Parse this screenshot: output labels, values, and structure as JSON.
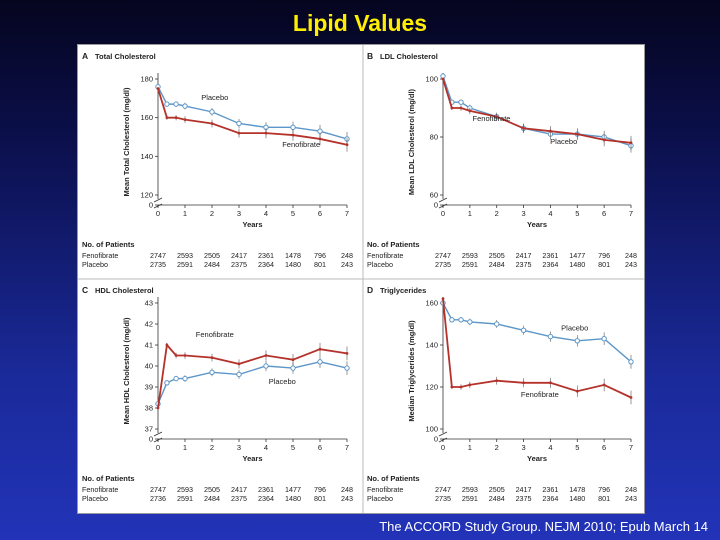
{
  "slide": {
    "title": "Lipid Values",
    "citation": "The ACCORD Study Group. NEJM 2010; Epub March 14"
  },
  "colors": {
    "fenofibrate": "#b5322b",
    "placebo": "#5d96c8"
  },
  "chart_data": [
    {
      "type": "line",
      "letter": "A",
      "title": "Total Cholesterol",
      "xlabel": "Years",
      "ylabel": "Mean Total Cholesterol (mg/dl)",
      "ylim": [
        120,
        180
      ],
      "yticks": [
        120,
        140,
        160,
        180
      ],
      "xlim": [
        0,
        7
      ],
      "xticks": [
        0,
        1,
        2,
        3,
        4,
        5,
        6,
        7
      ],
      "axis_break": true,
      "series": [
        {
          "name": "Fenofibrate",
          "x": [
            0,
            0.33,
            0.67,
            1,
            2,
            3,
            4,
            5,
            6,
            7
          ],
          "y": [
            175,
            160,
            160,
            159,
            157,
            152,
            152,
            151,
            149,
            146
          ]
        },
        {
          "name": "Placebo",
          "x": [
            0,
            0.33,
            0.67,
            1,
            2,
            3,
            4,
            5,
            6,
            7
          ],
          "y": [
            176,
            167,
            167,
            166,
            163,
            157,
            155,
            155,
            153,
            149
          ]
        }
      ],
      "patients_header": "No. of Patients",
      "patients": [
        {
          "label": "Fenofibrate",
          "values": [
            "2747",
            "2593",
            "2505",
            "2417",
            "2361",
            "1478",
            "796",
            "248"
          ]
        },
        {
          "label": "Placebo",
          "values": [
            "2735",
            "2591",
            "2484",
            "2375",
            "2364",
            "1480",
            "801",
            "243"
          ]
        }
      ]
    },
    {
      "type": "line",
      "letter": "B",
      "title": "LDL Cholesterol",
      "xlabel": "Years",
      "ylabel": "Mean LDL Cholesterol (mg/dl)",
      "ylim": [
        60,
        100
      ],
      "yticks": [
        60,
        80,
        100
      ],
      "xlim": [
        0,
        7
      ],
      "xticks": [
        0,
        1,
        2,
        3,
        4,
        5,
        6,
        7
      ],
      "axis_break": true,
      "series": [
        {
          "name": "Fenofibrate",
          "x": [
            0,
            0.33,
            0.67,
            1,
            2,
            3,
            4,
            5,
            6,
            7
          ],
          "y": [
            100,
            90,
            90,
            89,
            87,
            83,
            82,
            81,
            79,
            78
          ]
        },
        {
          "name": "Placebo",
          "x": [
            0,
            0.33,
            0.67,
            1,
            2,
            3,
            4,
            5,
            6,
            7
          ],
          "y": [
            101,
            92,
            92,
            90,
            87,
            83,
            81,
            81,
            80,
            77
          ]
        }
      ],
      "patients_header": "No. of Patients",
      "patients": [
        {
          "label": "Fenofibrate",
          "values": [
            "2747",
            "2593",
            "2505",
            "2417",
            "2361",
            "1477",
            "796",
            "248"
          ]
        },
        {
          "label": "Placebo",
          "values": [
            "2735",
            "2591",
            "2484",
            "2375",
            "2364",
            "1480",
            "801",
            "243"
          ]
        }
      ]
    },
    {
      "type": "line",
      "letter": "C",
      "title": "HDL Cholesterol",
      "xlabel": "Years",
      "ylabel": "Mean HDL Cholesterol (mg/dl)",
      "ylim": [
        37,
        43
      ],
      "yticks": [
        37,
        38,
        39,
        40,
        41,
        42,
        43
      ],
      "xlim": [
        0,
        7
      ],
      "xticks": [
        0,
        1,
        2,
        3,
        4,
        5,
        6,
        7
      ],
      "axis_break": true,
      "series": [
        {
          "name": "Fenofibrate",
          "x": [
            0,
            0.33,
            0.67,
            1,
            2,
            3,
            4,
            5,
            6,
            7
          ],
          "y": [
            38.0,
            41.0,
            40.5,
            40.5,
            40.4,
            40.1,
            40.5,
            40.3,
            40.8,
            40.6
          ]
        },
        {
          "name": "Placebo",
          "x": [
            0,
            0.33,
            0.67,
            1,
            2,
            3,
            4,
            5,
            6,
            7
          ],
          "y": [
            38.2,
            39.2,
            39.4,
            39.4,
            39.7,
            39.6,
            40.0,
            39.9,
            40.2,
            39.9
          ]
        }
      ],
      "patients_header": "No. of Patients",
      "patients": [
        {
          "label": "Fenofibrate",
          "values": [
            "2747",
            "2593",
            "2505",
            "2417",
            "2361",
            "1477",
            "796",
            "248"
          ]
        },
        {
          "label": "Placebo",
          "values": [
            "2736",
            "2591",
            "2484",
            "2375",
            "2364",
            "1480",
            "801",
            "243"
          ]
        }
      ]
    },
    {
      "type": "line",
      "letter": "D",
      "title": "Triglycerides",
      "xlabel": "Years",
      "ylabel": "Median Triglycerides (mg/dl)",
      "ylim": [
        100,
        160
      ],
      "yticks": [
        100,
        120,
        140,
        160
      ],
      "xlim": [
        0,
        7
      ],
      "xticks": [
        0,
        1,
        2,
        3,
        4,
        5,
        6,
        7
      ],
      "axis_break": true,
      "series": [
        {
          "name": "Fenofibrate",
          "x": [
            0,
            0.33,
            0.67,
            1,
            2,
            3,
            4,
            5,
            6,
            7
          ],
          "y": [
            162,
            120,
            120,
            121,
            123,
            122,
            122,
            118,
            121,
            115
          ]
        },
        {
          "name": "Placebo",
          "x": [
            0,
            0.33,
            0.67,
            1,
            2,
            3,
            4,
            5,
            6,
            7
          ],
          "y": [
            160,
            152,
            152,
            151,
            150,
            147,
            144,
            142,
            143,
            132
          ]
        }
      ],
      "patients_header": "No. of Patients",
      "patients": [
        {
          "label": "Fenofibrate",
          "values": [
            "2747",
            "2593",
            "2505",
            "2417",
            "2361",
            "1478",
            "796",
            "248"
          ]
        },
        {
          "label": "Placebo",
          "values": [
            "2735",
            "2591",
            "2484",
            "2375",
            "2364",
            "1480",
            "801",
            "243"
          ]
        }
      ]
    }
  ]
}
